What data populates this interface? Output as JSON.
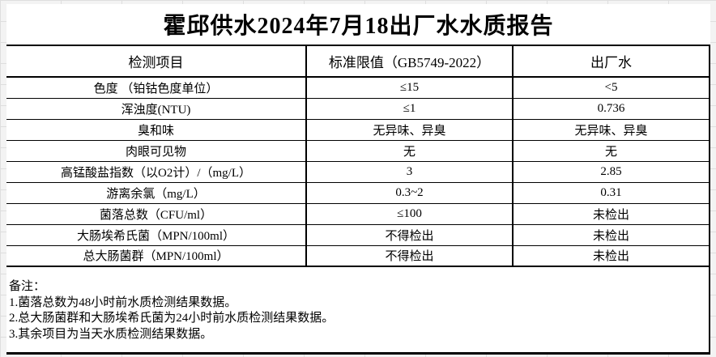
{
  "report": {
    "title": "霍邱供水2024年7月18出厂水水质报告"
  },
  "table": {
    "headers": [
      "检测项目",
      "标准限值（GB5749-2022）",
      "出厂水"
    ],
    "rows": [
      {
        "item": "色度 （铂钴色度单位）",
        "limit": "≤15",
        "value": "<5"
      },
      {
        "item": "浑浊度(NTU)",
        "limit": "≤1",
        "value": "0.736"
      },
      {
        "item": "臭和味",
        "limit": "无异味、异臭",
        "value": "无异味、异臭"
      },
      {
        "item": "肉眼可见物",
        "limit": "无",
        "value": "无"
      },
      {
        "item": "高锰酸盐指数（以O2计）/（mg/L）",
        "limit": "3",
        "value": "2.85"
      },
      {
        "item": "游离余氯（mg/L）",
        "limit": "0.3~2",
        "value": "0.31"
      },
      {
        "item": "菌落总数（CFU/ml）",
        "limit": "≤100",
        "value": "未检出"
      },
      {
        "item": "大肠埃希氏菌（MPN/100ml）",
        "limit": "不得检出",
        "value": "未检出"
      },
      {
        "item": "总大肠菌群（MPN/100ml）",
        "limit": "不得检出",
        "value": "未检出"
      }
    ]
  },
  "notes": {
    "label": "备注：",
    "items": [
      "1.菌落总数为48小时前水质检测结果数据。",
      "2.总大肠菌群和大肠埃希氏菌为24小时前水质检测结果数据。",
      "3.其余项目为当天水质检测结果数据。"
    ]
  },
  "colors": {
    "table_border": "#000000",
    "text": "#000000",
    "panel_background": "#ffffff",
    "sheet_background": "#f3f3f3"
  }
}
